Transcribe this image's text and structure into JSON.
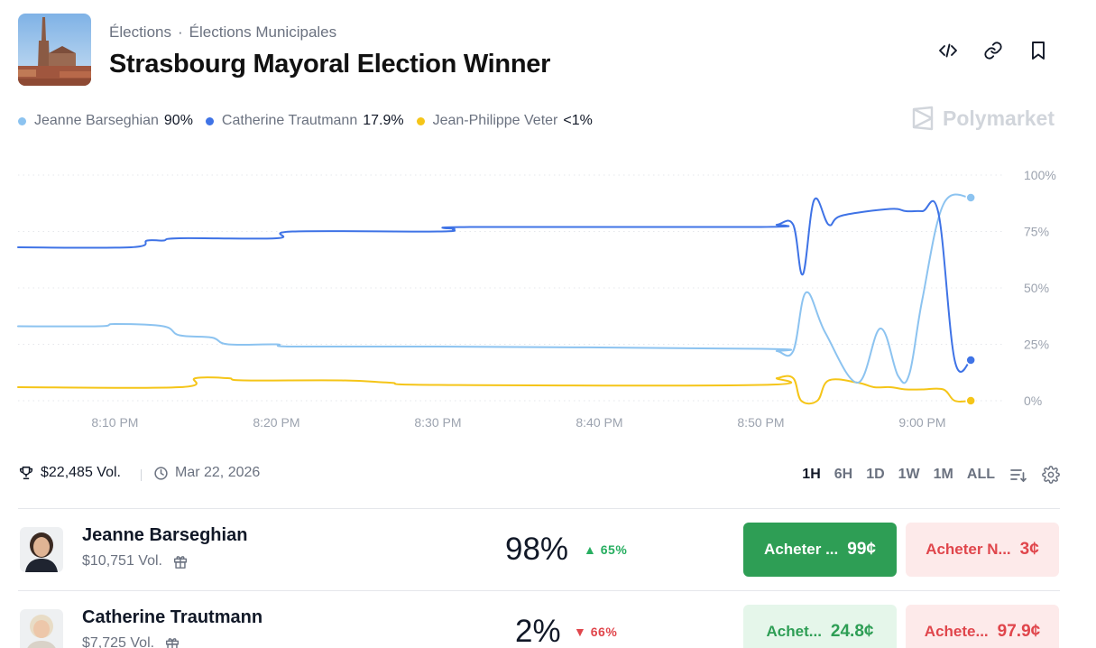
{
  "header": {
    "breadcrumb": [
      "Élections",
      "Élections Municipales"
    ],
    "title": "Strasbourg Mayoral Election Winner"
  },
  "header_icons": [
    "code-embed-icon",
    "link-icon",
    "bookmark-icon"
  ],
  "legend": [
    {
      "name": "Jeanne Barseghian",
      "value": "90%",
      "color": "#8cc3f0"
    },
    {
      "name": "Catherine Trautmann",
      "value": "17.9%",
      "color": "#3f73e6"
    },
    {
      "name": "Jean-Philippe Veter",
      "value": "<1%",
      "color": "#f5c518"
    }
  ],
  "brand": "Polymarket",
  "chart_data": {
    "type": "line",
    "x_unit": "time (PM)",
    "x_ticks": [
      "8:10 PM",
      "8:20 PM",
      "8:30 PM",
      "8:40 PM",
      "8:50 PM",
      "9:00 PM"
    ],
    "y_ticks": [
      "100%",
      "75%",
      "50%",
      "25%",
      "0%"
    ],
    "ylim": [
      0,
      100
    ],
    "xlim": [
      "8:04 PM",
      "9:05 PM"
    ],
    "grid": true,
    "series": [
      {
        "name": "Catherine Trautmann",
        "color": "#3f73e6",
        "points": [
          [
            "8:04",
            68
          ],
          [
            "8:11",
            68
          ],
          [
            "8:12",
            71
          ],
          [
            "8:13",
            71
          ],
          [
            "8:14",
            72
          ],
          [
            "8:20",
            72
          ],
          [
            "8:21",
            75
          ],
          [
            "8:30",
            75
          ],
          [
            "8:31",
            76
          ],
          [
            "8:32",
            77
          ],
          [
            "8:50",
            77
          ],
          [
            "8:51",
            78
          ],
          [
            "8:52",
            78
          ],
          [
            "8:52.6",
            56
          ],
          [
            "8:53.3",
            89
          ],
          [
            "8:54.2",
            78
          ],
          [
            "8:55",
            82
          ],
          [
            "8:58",
            85
          ],
          [
            "8:59",
            84
          ],
          [
            "9:00",
            84
          ],
          [
            "9:01",
            83
          ],
          [
            "9:02",
            18
          ],
          [
            "9:03",
            18
          ]
        ]
      },
      {
        "name": "Jeanne Barseghian",
        "color": "#8cc3f0",
        "points": [
          [
            "8:04",
            33
          ],
          [
            "8:09",
            33
          ],
          [
            "8:10",
            34
          ],
          [
            "8:13",
            33
          ],
          [
            "8:14",
            29
          ],
          [
            "8:16",
            28
          ],
          [
            "8:17",
            25
          ],
          [
            "8:20",
            25
          ],
          [
            "8:21",
            24
          ],
          [
            "8:30",
            24
          ],
          [
            "8:50",
            23
          ],
          [
            "8:51",
            22
          ],
          [
            "8:52",
            22
          ],
          [
            "8:52.8",
            48
          ],
          [
            "8:54",
            30
          ],
          [
            "8:56",
            8
          ],
          [
            "8:57.4",
            32
          ],
          [
            "8:58.5",
            11
          ],
          [
            "8:59.2",
            12
          ],
          [
            "9:00",
            45
          ],
          [
            "9:01.3",
            87
          ],
          [
            "9:03",
            90
          ]
        ]
      },
      {
        "name": "Jean-Philippe Veter",
        "color": "#f5c518",
        "points": [
          [
            "8:04",
            6
          ],
          [
            "8:14",
            6
          ],
          [
            "8:15",
            10
          ],
          [
            "8:17",
            10
          ],
          [
            "8:18",
            9
          ],
          [
            "8:24",
            9
          ],
          [
            "8:27",
            8
          ],
          [
            "8:30",
            7
          ],
          [
            "8:50",
            7
          ],
          [
            "8:51",
            10
          ],
          [
            "8:52",
            10
          ],
          [
            "8:52.5",
            0
          ],
          [
            "8:53.5",
            0
          ],
          [
            "8:54.2",
            9
          ],
          [
            "8:56",
            8
          ],
          [
            "8:57",
            6
          ],
          [
            "8:58",
            6
          ],
          [
            "8:59",
            5
          ],
          [
            "9:00",
            5
          ],
          [
            "9:01.3",
            5
          ],
          [
            "9:02",
            0
          ],
          [
            "9:03",
            0
          ]
        ]
      }
    ]
  },
  "stats": {
    "volume": "$22,485 Vol.",
    "date": "Mar 22, 2026",
    "ranges": [
      "1H",
      "6H",
      "1D",
      "1W",
      "1M",
      "ALL"
    ],
    "active_range": "1H"
  },
  "outcomes": [
    {
      "name": "Jeanne Barseghian",
      "volume": "$10,751 Vol.",
      "percent": "98%",
      "change": "65%",
      "direction": "up",
      "yes_label": "Acheter ...",
      "yes_price": "99¢",
      "no_label": "Acheter N...",
      "no_price": "3¢"
    },
    {
      "name": "Catherine Trautmann",
      "volume": "$7,725 Vol.",
      "percent": "2%",
      "change": "66%",
      "direction": "down",
      "yes_label": "Achet...",
      "yes_price": "24.8¢",
      "no_label": "Achete...",
      "no_price": "97.9¢"
    }
  ]
}
